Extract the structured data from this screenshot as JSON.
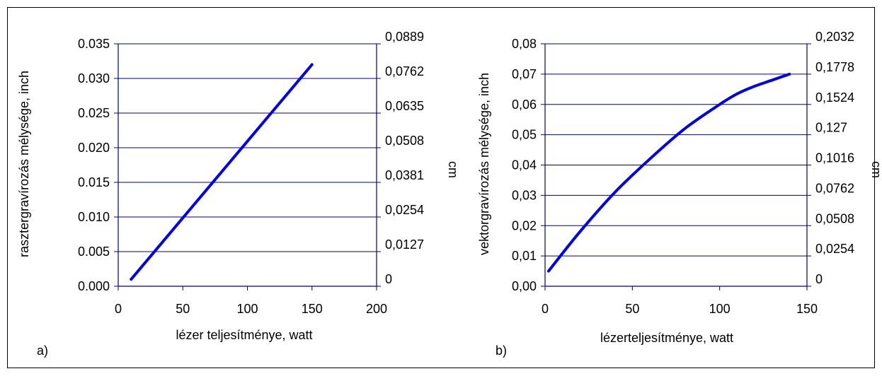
{
  "chart_data": [
    {
      "type": "line",
      "panel_label": "a)",
      "xlabel": "lézer teljesítménye, watt",
      "ylabel": "rasztergravírozás mélysége, inch",
      "y2label": "cm",
      "xlim": [
        0,
        200
      ],
      "ylim": [
        0,
        0.035
      ],
      "y2lim": [
        0,
        0.0889
      ],
      "xticks": [
        "0",
        "50",
        "100",
        "150",
        "200"
      ],
      "yticks": [
        "0.000",
        "0.005",
        "0.010",
        "0.015",
        "0.020",
        "0.025",
        "0.030",
        "0.035"
      ],
      "y2ticks": [
        "0",
        "0,0127",
        "0,0254",
        "0,0381",
        "0,0508",
        "0,0635",
        "0,0762",
        "0,0889"
      ],
      "grid": "horizontal",
      "legend": "none",
      "series": [
        {
          "color": "#0000ee",
          "points": [
            [
              10,
              0.001
            ],
            [
              150,
              0.032
            ]
          ]
        }
      ]
    },
    {
      "type": "line",
      "panel_label": "b)",
      "xlabel": "lézerteljesítménye, watt",
      "ylabel": "vektorgravírozás mélysége, inch",
      "y2label": "cm",
      "xlim": [
        0,
        150
      ],
      "ylim": [
        0,
        0.08
      ],
      "y2lim": [
        0,
        0.2032
      ],
      "xticks": [
        "0",
        "50",
        "100",
        "150"
      ],
      "yticks": [
        "0,00",
        "0,01",
        "0,02",
        "0,03",
        "0,04",
        "0,05",
        "0,06",
        "0,07",
        "0,08"
      ],
      "y2ticks": [
        "0",
        "0,0254",
        "0,0508",
        "0,0762",
        "0,1016",
        "0,127",
        "0,1524",
        "0,1778",
        "0,2032"
      ],
      "grid": "horizontal",
      "legend": "none",
      "series": [
        {
          "color": "#0000ee",
          "points": [
            [
              2,
              0.005
            ],
            [
              20,
              0.018
            ],
            [
              40,
              0.031
            ],
            [
              60,
              0.042
            ],
            [
              80,
              0.052
            ],
            [
              100,
              0.06
            ],
            [
              110,
              0.0635
            ],
            [
              120,
              0.066
            ],
            [
              130,
              0.068
            ],
            [
              140,
              0.07
            ]
          ]
        }
      ]
    }
  ]
}
